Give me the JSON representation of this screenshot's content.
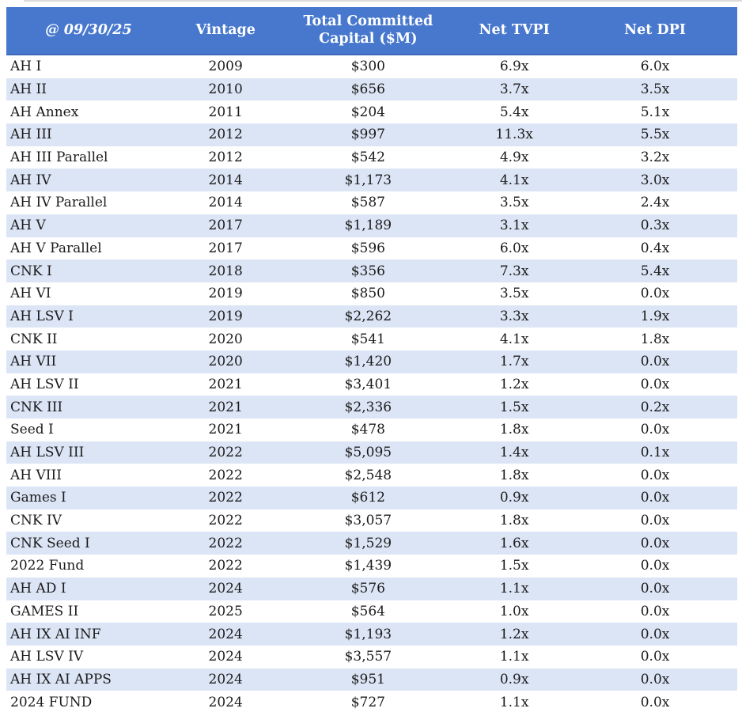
{
  "style": {
    "header_bg": "#4778ce",
    "header_edge": "#3c69ba",
    "stripe_bg": "#dce5f5",
    "text_color": "#1b1b1b",
    "bottom_border": "#1a1a1a"
  },
  "chart_data": {
    "type": "table",
    "columns": [
      "@ 09/30/25",
      "Vintage",
      "Total Committed Capital ($M)",
      "Net TVPI",
      "Net DPI"
    ],
    "rows": [
      [
        "AH I",
        "2009",
        "$300",
        "6.9x",
        "6.0x"
      ],
      [
        "AH II",
        "2010",
        "$656",
        "3.7x",
        "3.5x"
      ],
      [
        "AH Annex",
        "2011",
        "$204",
        "5.4x",
        "5.1x"
      ],
      [
        "AH III",
        "2012",
        "$997",
        "11.3x",
        "5.5x"
      ],
      [
        "AH III Parallel",
        "2012",
        "$542",
        "4.9x",
        "3.2x"
      ],
      [
        "AH IV",
        "2014",
        "$1,173",
        "4.1x",
        "3.0x"
      ],
      [
        "AH IV Parallel",
        "2014",
        "$587",
        "3.5x",
        "2.4x"
      ],
      [
        "AH V",
        "2017",
        "$1,189",
        "3.1x",
        "0.3x"
      ],
      [
        "AH V Parallel",
        "2017",
        "$596",
        "6.0x",
        "0.4x"
      ],
      [
        "CNK I",
        "2018",
        "$356",
        "7.3x",
        "5.4x"
      ],
      [
        "AH VI",
        "2019",
        "$850",
        "3.5x",
        "0.0x"
      ],
      [
        "AH LSV I",
        "2019",
        "$2,262",
        "3.3x",
        "1.9x"
      ],
      [
        "CNK II",
        "2020",
        "$541",
        "4.1x",
        "1.8x"
      ],
      [
        "AH VII",
        "2020",
        "$1,420",
        "1.7x",
        "0.0x"
      ],
      [
        "AH LSV II",
        "2021",
        "$3,401",
        "1.2x",
        "0.0x"
      ],
      [
        "CNK III",
        "2021",
        "$2,336",
        "1.5x",
        "0.2x"
      ],
      [
        "Seed I",
        "2021",
        "$478",
        "1.8x",
        "0.0x"
      ],
      [
        "AH LSV III",
        "2022",
        "$5,095",
        "1.4x",
        "0.1x"
      ],
      [
        "AH VIII",
        "2022",
        "$2,548",
        "1.8x",
        "0.0x"
      ],
      [
        "Games I",
        "2022",
        "$612",
        "0.9x",
        "0.0x"
      ],
      [
        "CNK IV",
        "2022",
        "$3,057",
        "1.8x",
        "0.0x"
      ],
      [
        "CNK Seed I",
        "2022",
        "$1,529",
        "1.6x",
        "0.0x"
      ],
      [
        "2022 Fund",
        "2022",
        "$1,439",
        "1.5x",
        "0.0x"
      ],
      [
        "AH AD I",
        "2024",
        "$576",
        "1.1x",
        "0.0x"
      ],
      [
        "GAMES II",
        "2025",
        "$564",
        "1.0x",
        "0.0x"
      ],
      [
        "AH IX AI INF",
        "2024",
        "$1,193",
        "1.2x",
        "0.0x"
      ],
      [
        "AH LSV IV",
        "2024",
        "$3,557",
        "1.1x",
        "0.0x"
      ],
      [
        "AH IX AI APPS",
        "2024",
        "$951",
        "0.9x",
        "0.0x"
      ],
      [
        "2024 FUND",
        "2024",
        "$727",
        "1.1x",
        "0.0x"
      ]
    ]
  }
}
